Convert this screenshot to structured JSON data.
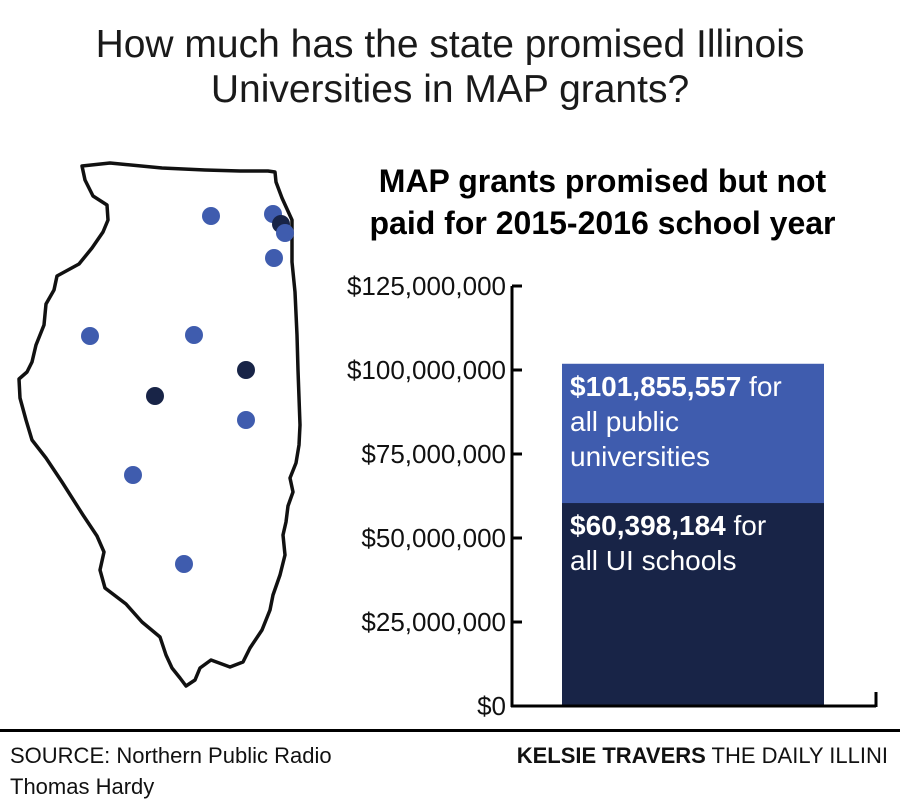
{
  "headline": {
    "line1": "How much has the state promised Illinois",
    "line2": "Universities in MAP grants?"
  },
  "colors": {
    "public_bar": "#3f5cae",
    "ui_bar": "#182447",
    "dot_light": "#3f5cae",
    "dot_dark": "#182447",
    "map_outline": "#111111",
    "axis": "#000000"
  },
  "map": {
    "icon": "illinois-state-map",
    "dots": [
      {
        "shade": "light"
      },
      {
        "shade": "light"
      },
      {
        "shade": "dark"
      },
      {
        "shade": "light"
      },
      {
        "shade": "light"
      },
      {
        "shade": "light"
      },
      {
        "shade": "light"
      },
      {
        "shade": "dark"
      },
      {
        "shade": "dark"
      },
      {
        "shade": "light"
      },
      {
        "shade": "light"
      },
      {
        "shade": "light"
      }
    ]
  },
  "chart_data": {
    "type": "bar",
    "title_line1": "MAP grants promised but not",
    "title_line2": "paid for 2015-2016 school year",
    "ylim": [
      0,
      125000000
    ],
    "yticks": [
      0,
      25000000,
      50000000,
      75000000,
      100000000,
      125000000
    ],
    "ytick_labels": [
      "$0",
      "$25,000,000",
      "$50,000,000",
      "$75,000,000",
      "$100,000,000",
      "$125,000,000"
    ],
    "series": [
      {
        "value": 101855557,
        "label_value": "$101,855,557",
        "label_text": " for",
        "label_rest": [
          "all public",
          "universities"
        ]
      },
      {
        "value": 60398184,
        "label_value": "$60,398,184",
        "label_text": " for",
        "label_rest": [
          "all UI schools"
        ]
      }
    ]
  },
  "footer": {
    "source": "SOURCE: Northern Public Radio",
    "author": "Thomas Hardy",
    "credit_name": "KELSIE TRAVERS",
    "credit_outlet": " THE DAILY ILLINI"
  }
}
